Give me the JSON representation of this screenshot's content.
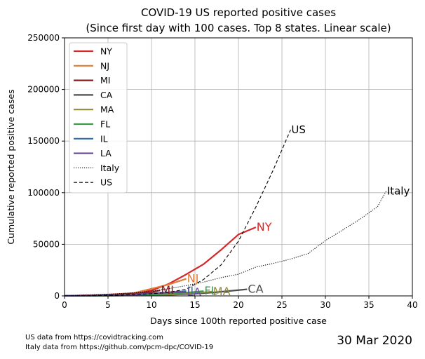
{
  "chart_data": {
    "type": "line",
    "title": "COVID-19 US reported positive cases",
    "subtitle": "(Since first day with 100 cases. Top 8 states. Linear scale)",
    "xlabel": "Days since 100th reported positive case",
    "ylabel": "Cumulative reported positive cases",
    "xlim": [
      0,
      40
    ],
    "ylim": [
      0,
      250000
    ],
    "xticks": [
      0,
      5,
      10,
      15,
      20,
      25,
      30,
      35,
      40
    ],
    "yticks": [
      0,
      50000,
      100000,
      150000,
      200000,
      250000
    ],
    "grid": true,
    "legend_position": "top-left",
    "series": [
      {
        "name": "NY",
        "color": "#d62728",
        "style": "solid",
        "end_label": "NY",
        "x": [
          0,
          2,
          4,
          6,
          8,
          10,
          12,
          14,
          16,
          18,
          20,
          22
        ],
        "y": [
          105,
          420,
          950,
          1700,
          2700,
          5200,
          11700,
          20900,
          30800,
          44600,
          59500,
          66500
        ]
      },
      {
        "name": "NJ",
        "color": "#e07b39",
        "style": "solid",
        "end_label": "NJ",
        "x": [
          0,
          2,
          4,
          6,
          8,
          10,
          12,
          14
        ],
        "y": [
          100,
          300,
          750,
          1350,
          2800,
          6900,
          11100,
          16600
        ]
      },
      {
        "name": "MI",
        "color": "#8b1a1a",
        "style": "solid",
        "end_label": "MI",
        "x": [
          0,
          2,
          4,
          6,
          8,
          10,
          11
        ],
        "y": [
          100,
          350,
          800,
          1300,
          2300,
          3600,
          5400
        ]
      },
      {
        "name": "CA",
        "color": "#4d4d4d",
        "style": "solid",
        "end_label": "CA",
        "x": [
          0,
          2,
          4,
          6,
          8,
          10,
          12,
          14,
          16,
          18,
          20,
          21
        ],
        "y": [
          100,
          150,
          220,
          340,
          480,
          700,
          1100,
          1700,
          2600,
          4000,
          5600,
          6400
        ]
      },
      {
        "name": "MA",
        "color": "#948b3d",
        "style": "solid",
        "end_label": "MA",
        "x": [
          0,
          2,
          4,
          6,
          8,
          10,
          12,
          14,
          16,
          17
        ],
        "y": [
          100,
          160,
          220,
          330,
          500,
          770,
          1200,
          2400,
          3400,
          4200
        ]
      },
      {
        "name": "FL",
        "color": "#3b9b49",
        "style": "solid",
        "end_label": "FL",
        "x": [
          0,
          2,
          4,
          6,
          8,
          10,
          12,
          14,
          16
        ],
        "y": [
          100,
          180,
          250,
          400,
          700,
          1200,
          2000,
          3200,
          4600
        ]
      },
      {
        "name": "IL",
        "color": "#3569b0",
        "style": "solid",
        "end_label": "IL",
        "x": [
          0,
          2,
          4,
          6,
          8,
          10,
          12,
          14
        ],
        "y": [
          100,
          200,
          380,
          700,
          1200,
          2300,
          3500,
          4600
        ]
      },
      {
        "name": "LA",
        "color": "#6b4c9a",
        "style": "solid",
        "end_label": "LA",
        "x": [
          0,
          2,
          4,
          6,
          8,
          10,
          12,
          14
        ],
        "y": [
          100,
          200,
          400,
          800,
          1400,
          2300,
          3300,
          3500
        ]
      },
      {
        "name": "Italy",
        "color": "#000000",
        "style": "dotted",
        "end_label": "Italy",
        "x": [
          0,
          2,
          4,
          6,
          8,
          10,
          12,
          14,
          16,
          18,
          20,
          22,
          24,
          26,
          28,
          30,
          32,
          34,
          36,
          37
        ],
        "y": [
          150,
          650,
          1150,
          2000,
          3000,
          4700,
          7000,
          10000,
          13400,
          17700,
          21000,
          27900,
          31500,
          35700,
          41000,
          53600,
          63900,
          74400,
          86500,
          101700
        ]
      },
      {
        "name": "US",
        "color": "#000000",
        "style": "dashed",
        "end_label": "US",
        "x": [
          0,
          2,
          4,
          6,
          8,
          10,
          12,
          14,
          16,
          18,
          20,
          22,
          24,
          26
        ],
        "y": [
          100,
          200,
          400,
          700,
          1300,
          2100,
          3500,
          6500,
          16000,
          30000,
          53000,
          86000,
          122000,
          161000
        ]
      }
    ]
  },
  "footer": {
    "note1": "US data from https://covidtracking.com",
    "note2": "Italy data from https://github.com/pcm-dpc/COVID-19",
    "date": "30 Mar 2020"
  }
}
